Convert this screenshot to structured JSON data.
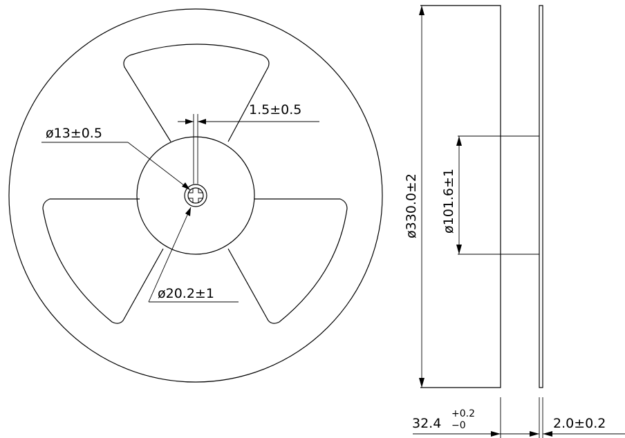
{
  "dimensions": {
    "hub_slot": "1.5±0.5",
    "arbor_hole": "ø13±0.5",
    "drive_hole": "ø20.2±1",
    "reel_diameter": "ø330.0±2",
    "hub_diameter": "ø101.6±1",
    "reel_width": "32.4",
    "reel_width_tol_plus": "+0.2",
    "reel_width_tol_minus": "−0",
    "flange_thickness": "2.0±0.2"
  }
}
